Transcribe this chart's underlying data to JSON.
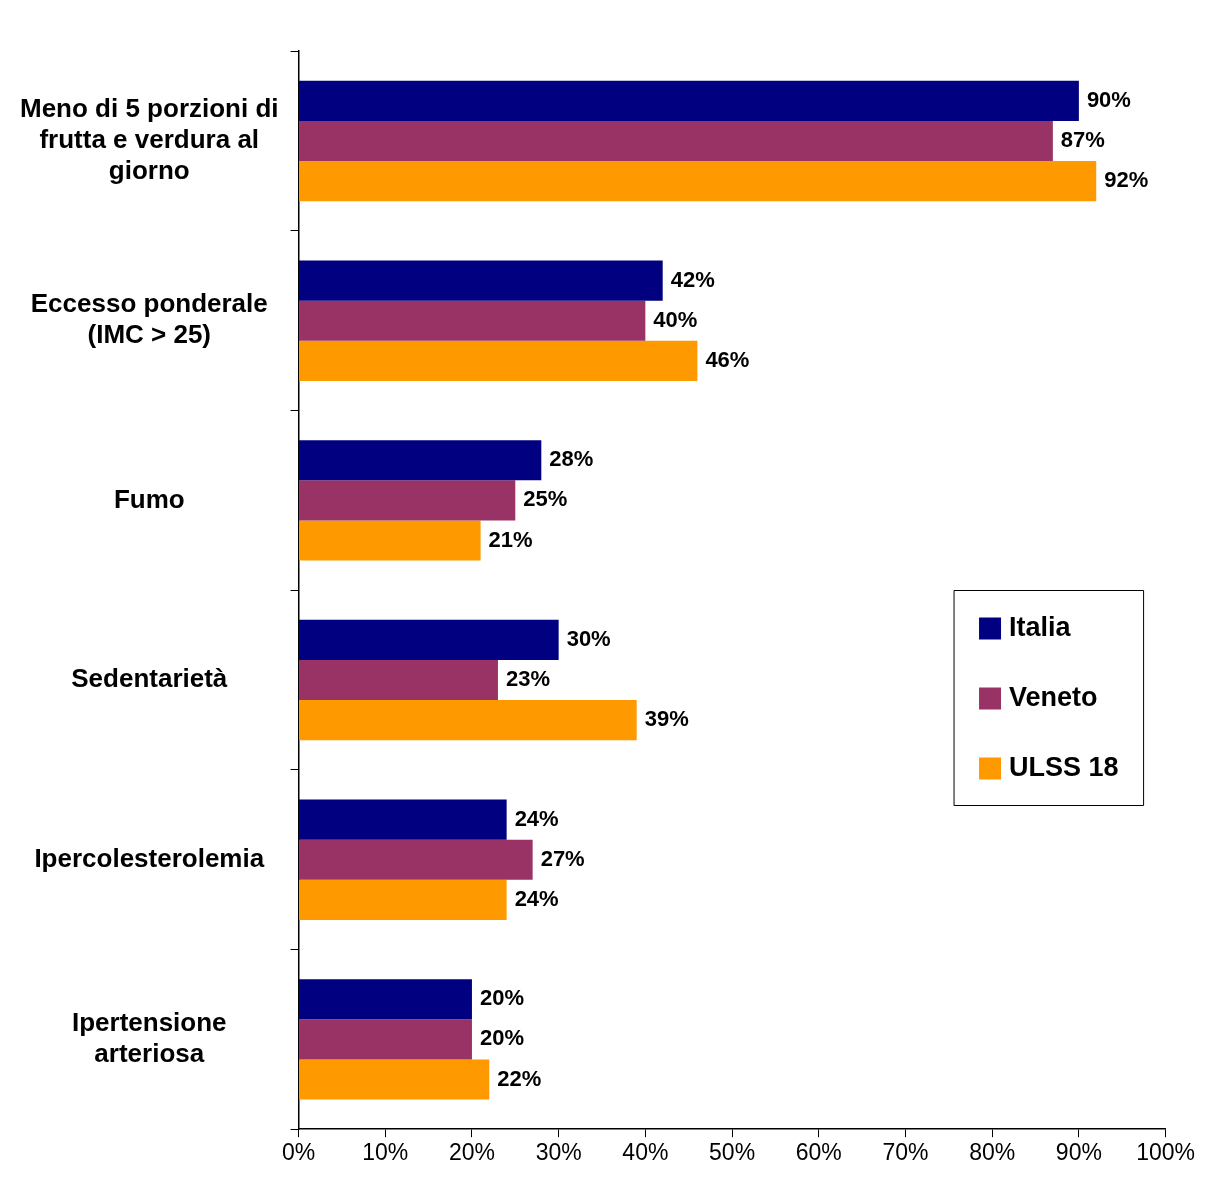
{
  "chart_data": {
    "type": "bar",
    "orientation": "horizontal",
    "categories": [
      "Meno di 5 porzioni di frutta e verdura al giorno",
      "Eccesso ponderale (IMC > 25)",
      "Fumo",
      "Sedentarietà",
      "Ipercolesterolemia",
      "Ipertensione arteriosa"
    ],
    "series": [
      {
        "name": "Italia",
        "color": "#000080",
        "values": [
          90,
          42,
          28,
          30,
          24,
          20
        ],
        "value_labels": [
          "90%",
          "42%",
          "28%",
          "30%",
          "24%",
          "20%"
        ]
      },
      {
        "name": "Veneto",
        "color": "#993366",
        "values": [
          87,
          40,
          25,
          23,
          27,
          20
        ],
        "value_labels": [
          "87%",
          "40%",
          "25%",
          "23%",
          "27%",
          "20%"
        ]
      },
      {
        "name": "ULSS 18",
        "color": "#ff9900",
        "values": [
          92,
          46,
          21,
          39,
          24,
          22
        ],
        "value_labels": [
          "92%",
          "46%",
          "21%",
          "39%",
          "24%",
          "22%"
        ]
      }
    ],
    "xlim": [
      0,
      100
    ],
    "xticks": [
      {
        "value": 0,
        "label": "0%"
      },
      {
        "value": 10,
        "label": "10%"
      },
      {
        "value": 20,
        "label": "20%"
      },
      {
        "value": 30,
        "label": "30%"
      },
      {
        "value": 40,
        "label": "40%"
      },
      {
        "value": 50,
        "label": "50%"
      },
      {
        "value": 60,
        "label": "60%"
      },
      {
        "value": 70,
        "label": "70%"
      },
      {
        "value": 80,
        "label": "80%"
      },
      {
        "value": 90,
        "label": "90%"
      },
      {
        "value": 100,
        "label": "100%"
      }
    ],
    "grid": false,
    "legend": "right"
  }
}
